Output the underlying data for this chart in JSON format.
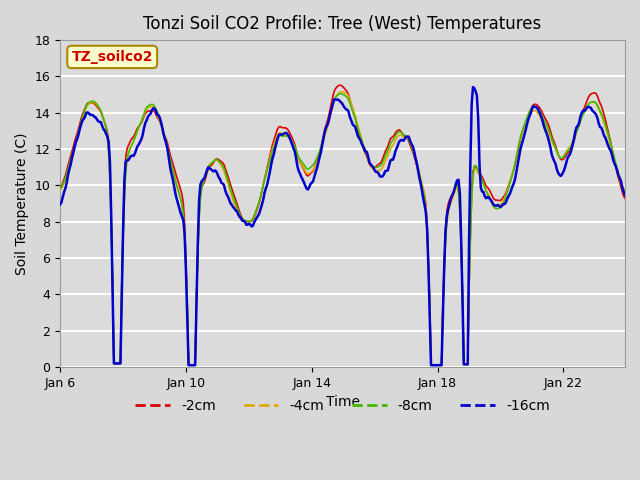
{
  "title": "Tonzi Soil CO2 Profile: Tree (West) Temperatures",
  "xlabel": "Time",
  "ylabel": "Soil Temperature (C)",
  "ylim": [
    0,
    18
  ],
  "yticks": [
    0,
    2,
    4,
    6,
    8,
    10,
    12,
    14,
    16,
    18
  ],
  "xtick_labels": [
    "Jan 6",
    "Jan 10",
    "Jan 14",
    "Jan 18",
    "Jan 22"
  ],
  "xtick_positions": [
    0,
    96,
    192,
    288,
    384
  ],
  "colors": {
    "-2cm": "#dd0000",
    "-4cm": "#ddaa00",
    "-8cm": "#44bb00",
    "-16cm": "#0000cc"
  },
  "legend_label": "TZ_soilco2",
  "bg_color": "#e8e8e8",
  "plot_bg": "#f0f0f0",
  "grid_color": "#ffffff",
  "total_points": 480
}
